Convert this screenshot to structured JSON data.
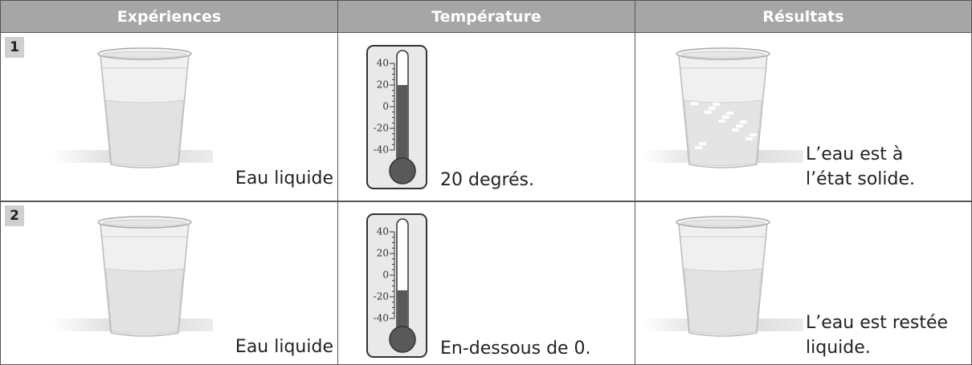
{
  "header": {
    "columns": [
      "Expériences",
      "Température",
      "Résultats"
    ]
  },
  "rows": [
    {
      "number": 1,
      "experience": "Eau liquide",
      "thermometer": {
        "scale": [
          40,
          20,
          0,
          -20,
          -40
        ],
        "level": 20
      },
      "temperature": "20 degrés.",
      "result": [
        "L’eau est à",
        "l’état solide."
      ],
      "frozen": true
    },
    {
      "number": 2,
      "experience": "Eau liquide",
      "thermometer": {
        "scale": [
          40,
          20,
          0,
          -20,
          -40
        ],
        "level": -14
      },
      "temperature": "En-dessous de 0.",
      "result": [
        "L’eau est restée",
        "liquide."
      ],
      "frozen": false
    }
  ]
}
